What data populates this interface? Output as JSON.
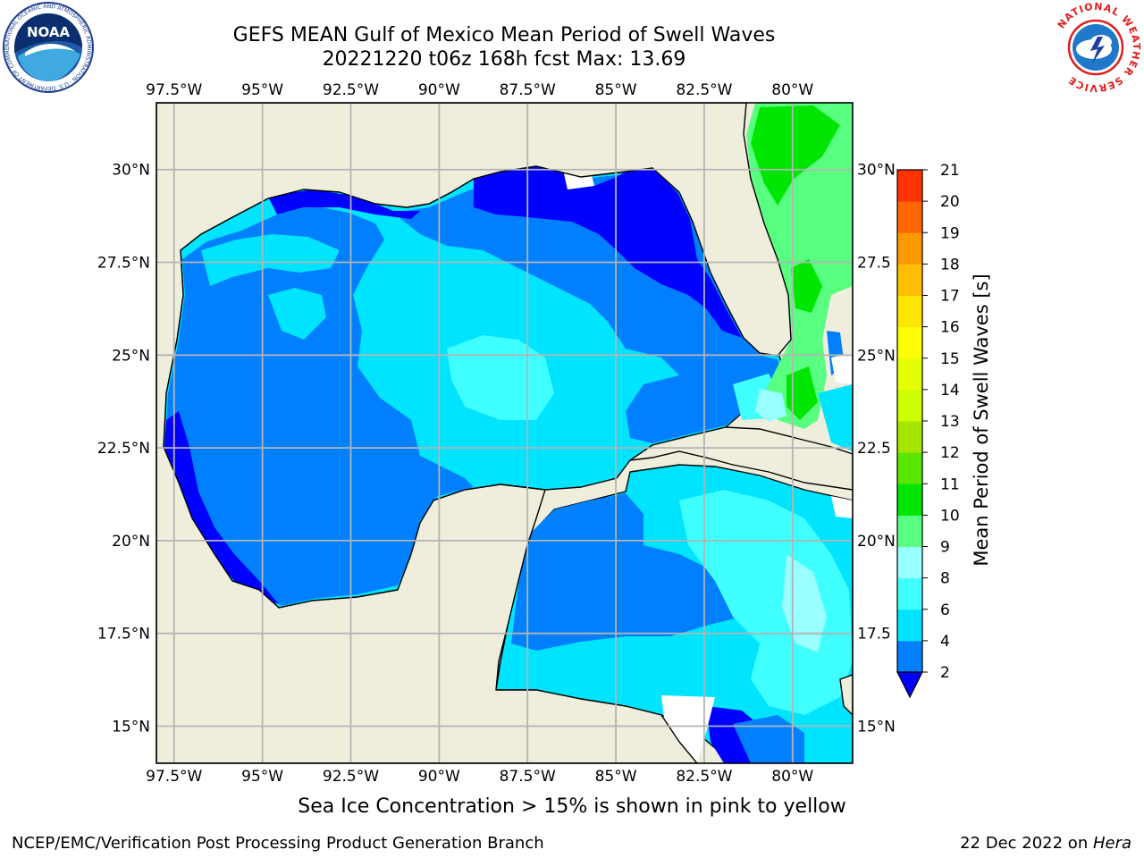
{
  "title": "GEFS MEAN Gulf of Mexico Mean Period of Swell Waves",
  "subtitle": "20221220 t06z 168h fcst   Max: 13.69",
  "logos": {
    "noaa_text": "NOAA",
    "noaa_ring": "NATIONAL OCEANIC AND ATMOSPHERIC ADMINISTRATION · U.S. DEPARTMENT OF COMMERCE",
    "nws_ring": "NATIONAL WEATHER SERVICE"
  },
  "axes": {
    "x_top": [
      "97.5°W",
      "95°W",
      "92.5°W",
      "90°W",
      "87.5°W",
      "85°W",
      "82.5°W",
      "80°W"
    ],
    "x_bottom": [
      "97.5°W",
      "95°W",
      "92.5°W",
      "90°W",
      "87.5°W",
      "85°W",
      "82.5°W",
      "80°W"
    ],
    "y_left": [
      "30°N",
      "27.5°N",
      "25°N",
      "22.5°N",
      "20°N",
      "17.5°N",
      "15°N"
    ],
    "y_right": [
      "30°N",
      "27.5",
      "25°N",
      "22.5",
      "20°N",
      "17.5",
      "15°N"
    ]
  },
  "map_extent": {
    "lon": [
      -98,
      -78.3
    ],
    "lat": [
      14,
      31.8
    ]
  },
  "colorbar": {
    "label": "Mean Period of Swell Waves [s]",
    "ticks": [
      "2",
      "4",
      "6",
      "8",
      "9",
      "10",
      "11",
      "12",
      "13",
      "14",
      "15",
      "16",
      "17",
      "18",
      "19",
      "20",
      "21"
    ],
    "colors": [
      "#0080ff",
      "#00e4ff",
      "#40ffff",
      "#99ffff",
      "#58ff80",
      "#00e600",
      "#59e600",
      "#a4e600",
      "#ccff00",
      "#e6ff00",
      "#ffff00",
      "#ffe600",
      "#ffbf00",
      "#ff9900",
      "#ff6600",
      "#ff3300"
    ],
    "under_color": "#0000ff"
  },
  "colors": {
    "land": "#efeedd",
    "grid": "#b4b4b4"
  },
  "note": "Sea Ice Concentration > 15% is shown in pink to yellow",
  "footer_left": "NCEP/EMC/Verification Post Processing Product Generation Branch",
  "footer_right_prefix": "22 Dec 2022 on ",
  "footer_right_machine": "Hera"
}
